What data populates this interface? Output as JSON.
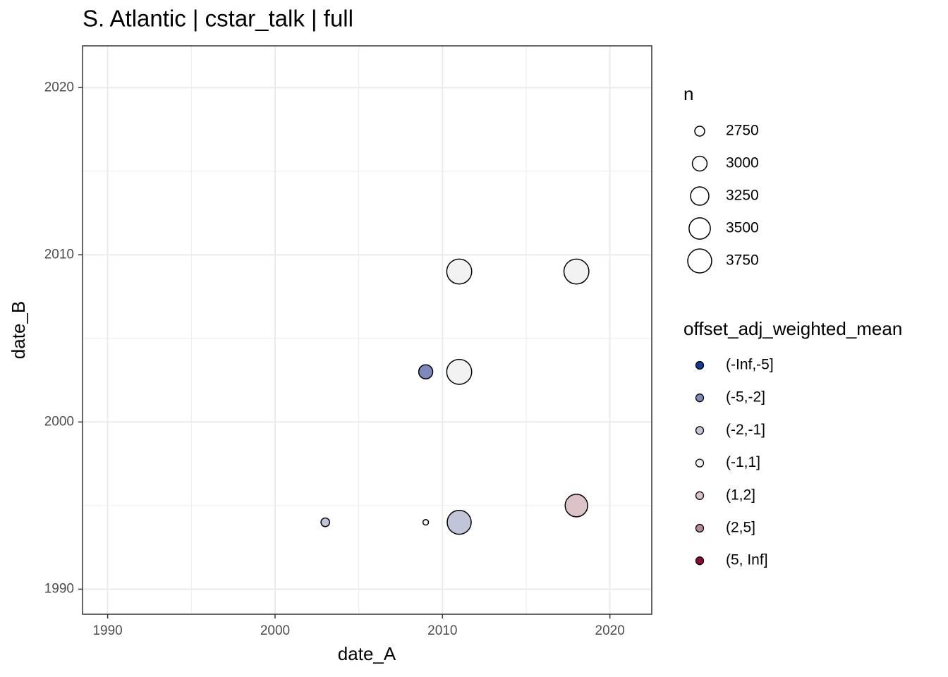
{
  "chart_data": {
    "type": "scatter",
    "title": "S. Atlantic | cstar_talk | full",
    "x_label": "date_A",
    "y_label": "date_B",
    "x": [
      2011,
      2018,
      2009,
      2011,
      2003,
      2009,
      2011,
      2018
    ],
    "y": [
      2009,
      2009,
      2003,
      2003,
      1994,
      1994,
      1994,
      1995
    ],
    "sizes": [
      3850,
      3850,
      2960,
      3850,
      2700,
      2610,
      3750,
      3610
    ],
    "groups": [
      "(-1,1]",
      "(-1,1]",
      "(-5,-2]",
      "(-1,1]",
      "(-2,-1]",
      "(-1,1]",
      "(-2,-1]",
      "(1,2]"
    ],
    "xlim": [
      1988.5,
      2022.5
    ],
    "ylim": [
      1988.5,
      2022.5
    ],
    "xticks": [
      1990,
      2000,
      2010,
      2020
    ],
    "yticks": [
      1990,
      2000,
      2010,
      2020
    ],
    "minor_xticks": [
      1995,
      2005,
      2015
    ],
    "minor_yticks": [
      1995,
      2005,
      2015
    ],
    "grid": true,
    "size_legend": {
      "title": "n",
      "values": [
        2750,
        3000,
        3250,
        3500,
        3750
      ]
    },
    "color_legend": {
      "title": "offset_adj_weighted_mean",
      "labels": [
        "(-Inf,-5]",
        "(-5,-2]",
        "(-2,-1]",
        "(-1,1]",
        "(1,2]",
        "(2,5]",
        "(5, Inf]"
      ],
      "colors": [
        "#0f3b91",
        "#7d88bc",
        "#c0c5da",
        "#f2f2f2",
        "#dcc3c8",
        "#bb8a93",
        "#8c0b30"
      ]
    }
  }
}
